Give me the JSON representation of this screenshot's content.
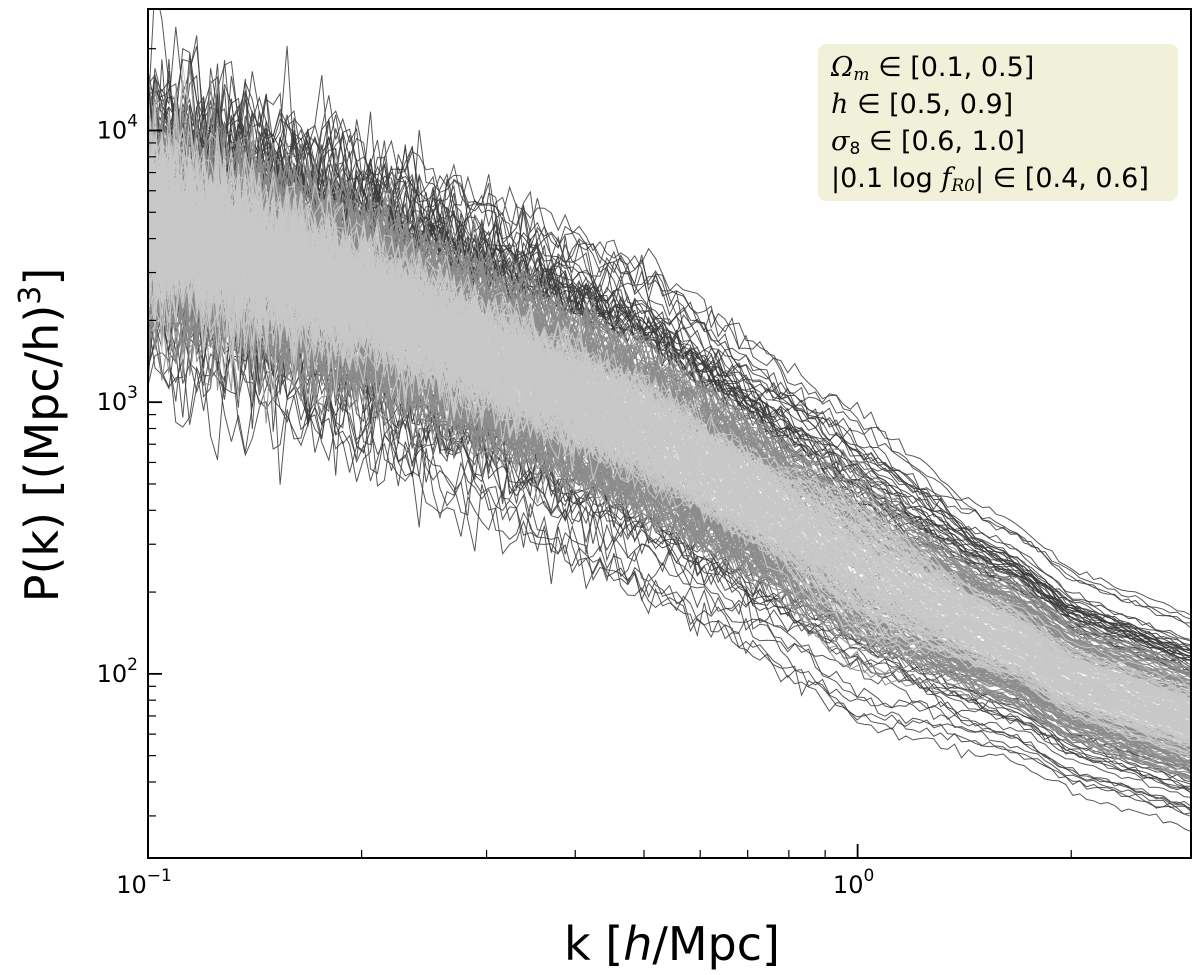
{
  "chart_data": {
    "type": "line",
    "title": "",
    "xlabel": "k [h/Mpc]",
    "ylabel": "P(k) [(Mpc/h)^3]",
    "xscale": "log",
    "yscale": "log",
    "xlim": [
      0.1,
      2.95
    ],
    "ylim": [
      21,
      28000
    ],
    "x_ticks": [
      {
        "base": "10",
        "exp": "−1",
        "value": 0.1
      },
      {
        "base": "10",
        "exp": "0",
        "value": 1.0
      }
    ],
    "y_ticks": [
      {
        "base": "10",
        "exp": "2",
        "value": 100
      },
      {
        "base": "10",
        "exp": "3",
        "value": 1000
      },
      {
        "base": "10",
        "exp": "4",
        "value": 10000
      }
    ],
    "grid": false,
    "legend_position": "top-right",
    "legend_lines": [
      {
        "sym": "Ω",
        "sub": "m",
        "rest": " ∈ [0.1, 0.5]"
      },
      {
        "sym": "h",
        "sub": "",
        "rest": " ∈ [0.5, 0.9]"
      },
      {
        "sym": "σ",
        "sub": "8",
        "rest": " ∈ [0.6, 1.0]"
      },
      {
        "pre": "|0.1 log ",
        "sym": "f",
        "sub": "R0",
        "rest": "| ∈ [0.4, 0.6]"
      }
    ],
    "series_description": "ensemble of many noisy power-spectrum curves",
    "envelope": {
      "k": [
        0.1,
        0.2,
        0.5,
        1.0,
        2.0,
        2.95
      ],
      "upper": [
        20000,
        7500,
        2500,
        700,
        190,
        140
      ],
      "lower": [
        1500,
        800,
        250,
        100,
        40,
        28
      ],
      "typical_high": [
        9000,
        5000,
        1800,
        500,
        160,
        110
      ],
      "typical_low": [
        2500,
        1200,
        350,
        130,
        55,
        40
      ]
    },
    "colors": {
      "dark_lines": "#3a3a3a",
      "mid_lines": "#8c8c8c",
      "light_lines": "#c8c8c8",
      "legend_bg": "#f1f0d8"
    }
  }
}
